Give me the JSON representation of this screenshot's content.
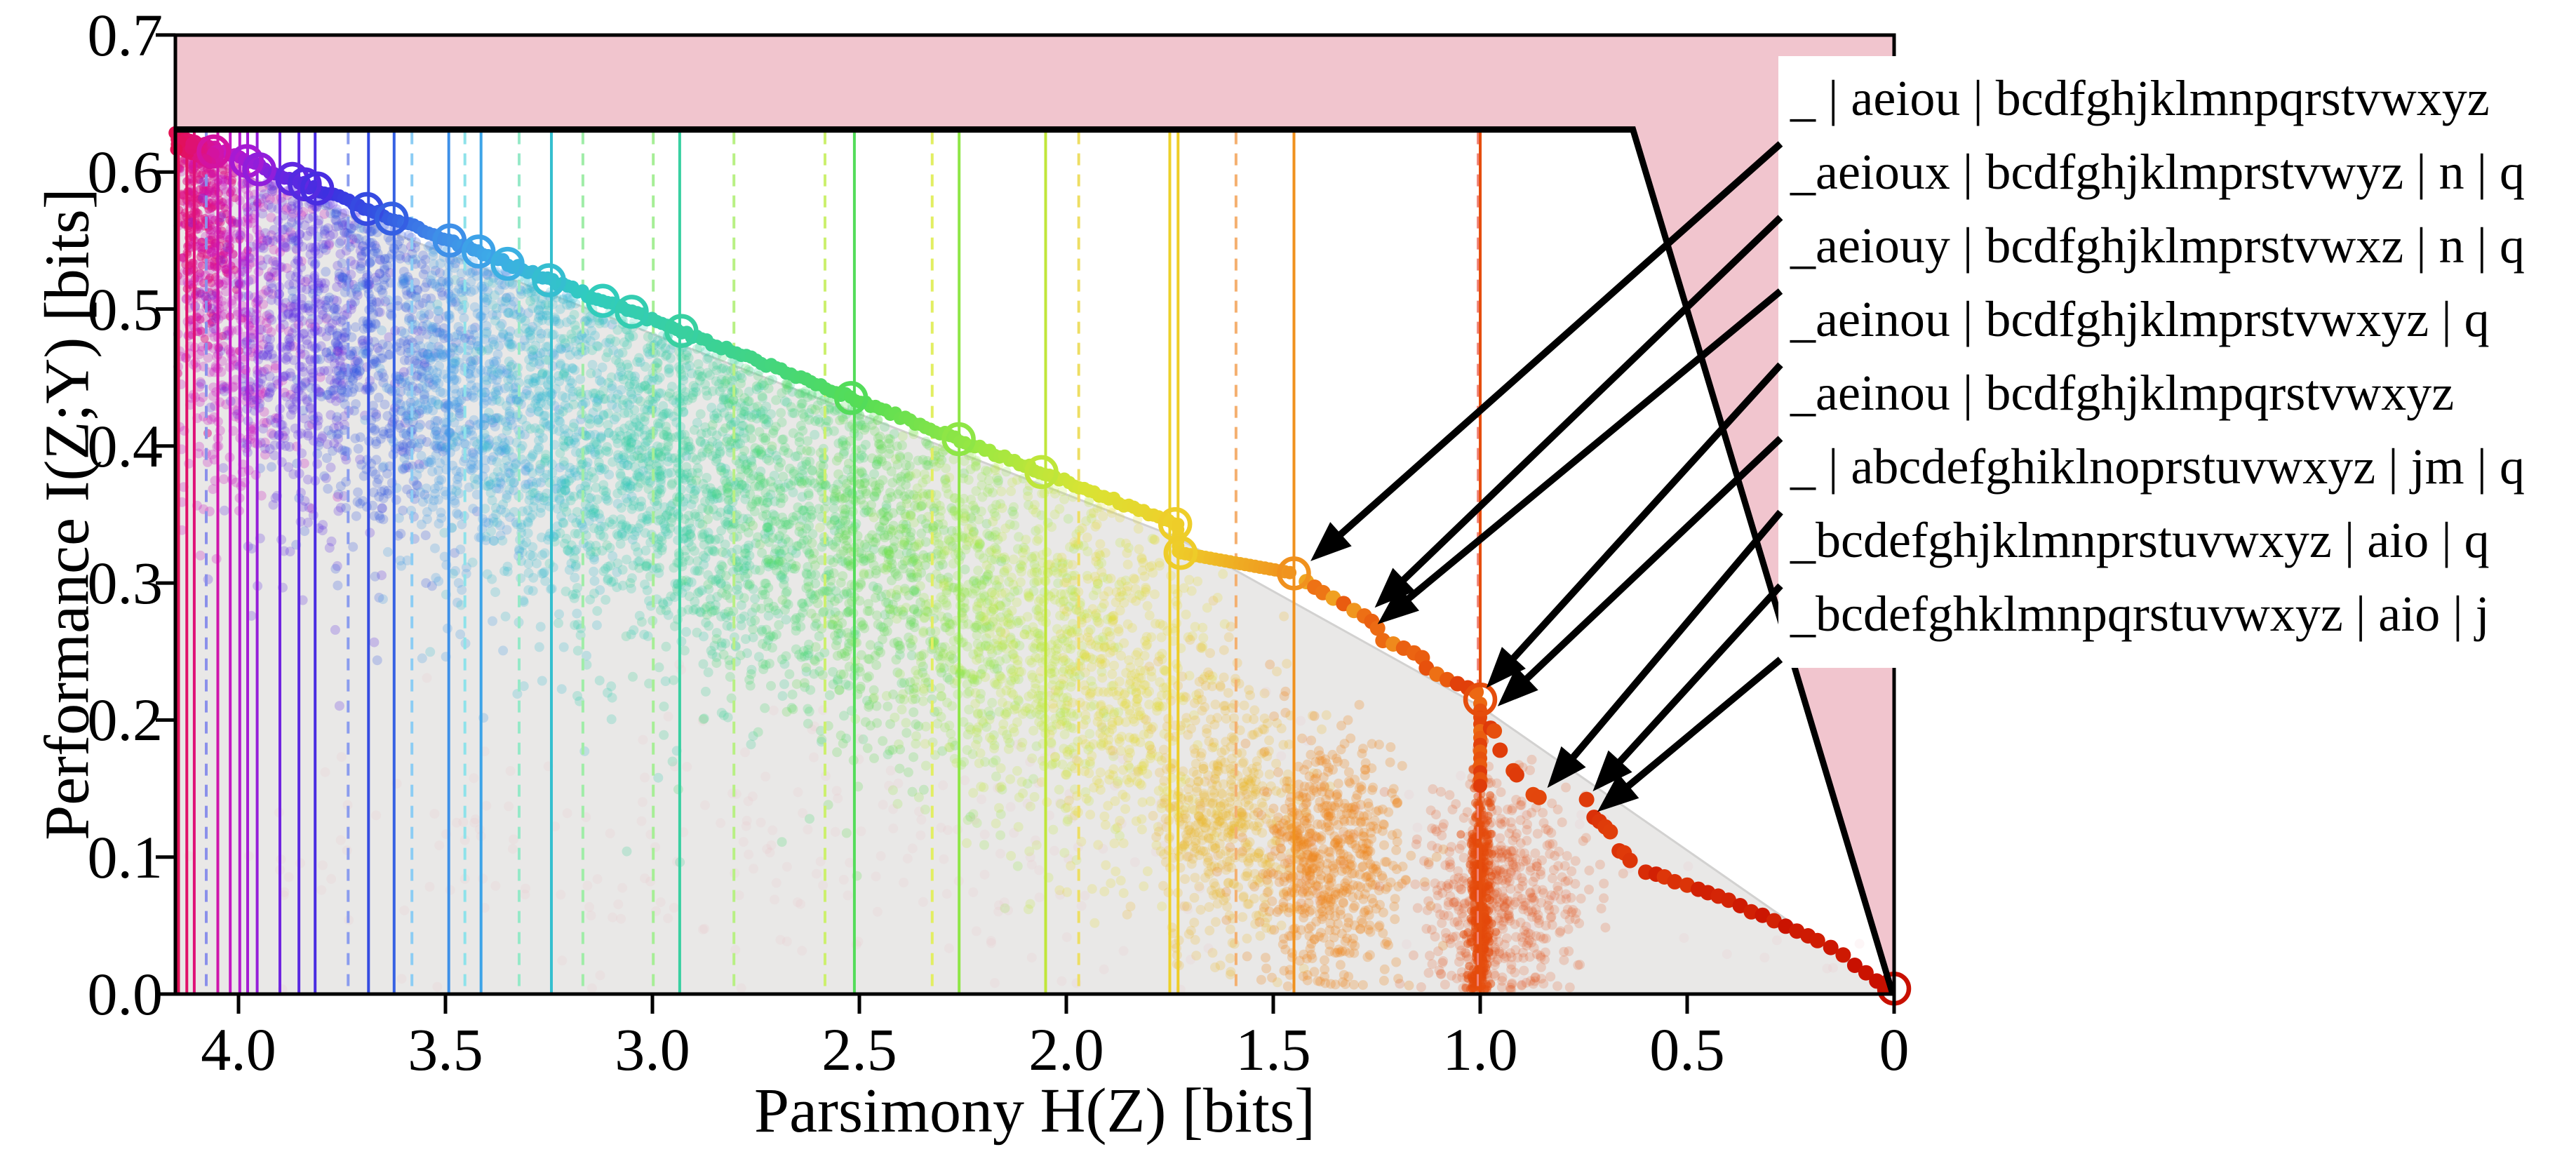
{
  "chart_data": {
    "type": "scatter",
    "title": "",
    "xlabel": "Parsimony H(Z) [bits]",
    "ylabel": "Performance I(Z;Y) [bits]",
    "xlim": [
      4.153,
      0
    ],
    "ylim": [
      0,
      0.7
    ],
    "x_axis_reversed": true,
    "grid": false,
    "x_ticks": [
      4.0,
      3.5,
      3.0,
      2.5,
      2.0,
      1.5,
      1.0,
      0.5,
      0
    ],
    "x_tick_labels": [
      "4.0",
      "3.5",
      "3.0",
      "2.5",
      "2.0",
      "1.5",
      "1.0",
      "0.5",
      "0"
    ],
    "y_ticks_top_down": [
      0.7,
      0.6,
      0.5,
      0.4,
      0.3,
      0.2,
      0.1,
      0.0
    ],
    "y_tick_labels_top_down": [
      "0.7",
      "0.6",
      "0.5",
      "0.4",
      "0.3",
      "0.2",
      "0.1",
      "0.0"
    ],
    "bounds": {
      "performance_cap_bits": 0.631,
      "identity_line": "I = H",
      "infeasible_color": "#f1c5ce",
      "hull_color": "#e9e8e7",
      "hull_edge_color": "#d2d1d0",
      "boundary_color": "#000000"
    },
    "colormap_stops": [
      [
        0.0,
        "#c81000"
      ],
      [
        0.12,
        "#d52706"
      ],
      [
        0.2,
        "#e03d0a"
      ],
      [
        0.26,
        "#e8550e"
      ],
      [
        0.31,
        "#ee7516"
      ],
      [
        0.35,
        "#f0921e"
      ],
      [
        0.42,
        "#eed02a"
      ],
      [
        0.47,
        "#d8e434"
      ],
      [
        0.53,
        "#9ce842"
      ],
      [
        0.6,
        "#55dd55"
      ],
      [
        0.68,
        "#3cd292"
      ],
      [
        0.76,
        "#30cbc0"
      ],
      [
        0.815,
        "#3dabe8"
      ],
      [
        0.85,
        "#3f86e8"
      ],
      [
        0.88,
        "#3355e2"
      ],
      [
        0.91,
        "#3c30e0"
      ],
      [
        0.935,
        "#6526e2"
      ],
      [
        0.955,
        "#9c1cd8"
      ],
      [
        0.97,
        "#c815c0"
      ],
      [
        0.985,
        "#dd1284"
      ],
      [
        1.0,
        "#e31052"
      ]
    ],
    "frontier": {
      "left_start_h": 4.153,
      "left_start_i": 0.628,
      "slope_per_bit": 0.118,
      "kink_h": 1.737,
      "kink_drop_i": 0.322,
      "shelf_end_h": 1.45,
      "shelf_end_i": 0.307,
      "stair_points": [
        [
          1.42,
          0.301
        ],
        [
          1.4,
          0.297
        ],
        [
          1.38,
          0.293
        ],
        [
          1.355,
          0.289
        ],
        [
          1.33,
          0.285
        ],
        [
          1.305,
          0.28
        ],
        [
          1.28,
          0.276
        ],
        [
          1.262,
          0.272
        ],
        [
          1.248,
          0.267
        ],
        [
          1.235,
          0.258
        ],
        [
          1.21,
          0.2555
        ],
        [
          1.185,
          0.2525
        ],
        [
          1.16,
          0.249
        ],
        [
          1.14,
          0.2455
        ],
        [
          1.13,
          0.238
        ],
        [
          1.105,
          0.2335
        ],
        [
          1.08,
          0.2295
        ],
        [
          1.055,
          0.2265
        ],
        [
          1.03,
          0.2235
        ],
        [
          1.01,
          0.2205
        ]
      ],
      "column_h": 1.0,
      "column_i_top": 0.212,
      "column_i_bottom": 0.15,
      "tail_points": [
        [
          0.975,
          0.194
        ],
        [
          0.966,
          0.192
        ],
        [
          0.952,
          0.178
        ],
        [
          0.92,
          0.163
        ],
        [
          0.912,
          0.16
        ],
        [
          0.872,
          0.1455
        ],
        [
          0.858,
          0.1435
        ],
        [
          0.743,
          0.142
        ],
        [
          0.725,
          0.129
        ],
        [
          0.712,
          0.126
        ],
        [
          0.698,
          0.122
        ],
        [
          0.686,
          0.1185
        ],
        [
          0.664,
          0.1045
        ],
        [
          0.652,
          0.103
        ],
        [
          0.638,
          0.0975
        ],
        [
          0.6,
          0.089
        ],
        [
          0.575,
          0.0875
        ],
        [
          0.555,
          0.0855
        ],
        [
          0.53,
          0.082
        ],
        [
          0.5,
          0.0795
        ],
        [
          0.473,
          0.0765
        ],
        [
          0.45,
          0.074
        ],
        [
          0.425,
          0.0715
        ],
        [
          0.4,
          0.0685
        ],
        [
          0.372,
          0.0645
        ],
        [
          0.345,
          0.06
        ],
        [
          0.318,
          0.0575
        ],
        [
          0.29,
          0.0535
        ],
        [
          0.262,
          0.0495
        ],
        [
          0.235,
          0.046
        ],
        [
          0.208,
          0.0425
        ],
        [
          0.185,
          0.039
        ],
        [
          0.153,
          0.034
        ],
        [
          0.123,
          0.0285
        ],
        [
          0.095,
          0.021
        ],
        [
          0.068,
          0.0155
        ],
        [
          0.042,
          0.0095
        ],
        [
          0.02,
          0.005
        ]
      ]
    },
    "frontier_rings": [
      [
        4.06,
        0.615
      ],
      [
        3.98,
        0.608
      ],
      [
        3.95,
        0.602
      ],
      [
        3.87,
        0.595
      ],
      [
        3.84,
        0.591
      ],
      [
        3.81,
        0.588
      ],
      [
        3.69,
        0.573
      ],
      [
        3.63,
        0.566
      ],
      [
        3.49,
        0.55
      ],
      [
        3.42,
        0.542
      ],
      [
        3.35,
        0.533
      ],
      [
        3.25,
        0.521
      ],
      [
        3.12,
        0.506
      ],
      [
        3.05,
        0.498
      ],
      [
        2.93,
        0.484
      ],
      [
        2.52,
        0.435
      ],
      [
        2.26,
        0.405
      ],
      [
        2.06,
        0.381
      ],
      [
        1.737,
        0.343
      ],
      [
        1.724,
        0.322
      ],
      [
        1.45,
        0.307
      ],
      [
        1.0,
        0.215
      ],
      [
        0.0,
        0.004
      ]
    ],
    "vlines": [
      {
        "h": 4.145,
        "dashed": 0
      },
      {
        "h": 4.125,
        "dashed": 0
      },
      {
        "h": 4.107,
        "dashed": 0
      },
      {
        "h": 4.078,
        "dashed": 1,
        "color": "#8a90ea"
      },
      {
        "h": 4.05,
        "dashed": 0
      },
      {
        "h": 4.02,
        "dashed": 0
      },
      {
        "h": 3.997,
        "dashed": 0
      },
      {
        "h": 3.978,
        "dashed": 0
      },
      {
        "h": 3.955,
        "dashed": 0
      },
      {
        "h": 3.9,
        "dashed": 0
      },
      {
        "h": 3.854,
        "dashed": 0
      },
      {
        "h": 3.815,
        "dashed": 0
      },
      {
        "h": 3.735,
        "dashed": 1,
        "color": "#8a9cee"
      },
      {
        "h": 3.686,
        "dashed": 0
      },
      {
        "h": 3.624,
        "dashed": 0
      },
      {
        "h": 3.581,
        "dashed": 1,
        "color": "#8ccdf4"
      },
      {
        "h": 3.492,
        "dashed": 0
      },
      {
        "h": 3.453,
        "dashed": 1,
        "color": "#8ee2ea"
      },
      {
        "h": 3.414,
        "dashed": 0
      },
      {
        "h": 3.322,
        "dashed": 1,
        "color": "#96e9c8"
      },
      {
        "h": 3.244,
        "dashed": 0
      },
      {
        "h": 3.168,
        "dashed": 1,
        "color": "#a0eda8"
      },
      {
        "h": 2.998,
        "dashed": 1,
        "color": "#a6ee96"
      },
      {
        "h": 2.934,
        "dashed": 0
      },
      {
        "h": 2.803,
        "dashed": 1,
        "color": "#b8f084"
      },
      {
        "h": 2.583,
        "dashed": 1,
        "color": "#ccf06e"
      },
      {
        "h": 2.512,
        "dashed": 0
      },
      {
        "h": 2.324,
        "dashed": 1,
        "color": "#e2ee62"
      },
      {
        "h": 2.259,
        "dashed": 0
      },
      {
        "h": 2.05,
        "dashed": 0
      },
      {
        "h": 1.97,
        "dashed": 1,
        "color": "#eede64"
      },
      {
        "h": 1.75,
        "dashed": 0
      },
      {
        "h": 1.73,
        "dashed": 0
      },
      {
        "h": 1.59,
        "dashed": 1,
        "color": "#f4b070"
      },
      {
        "h": 1.45,
        "dashed": 0
      },
      {
        "h": 1.005,
        "dashed": 1,
        "color": "#f08478"
      },
      {
        "h": 1.0,
        "dashed": 0
      }
    ],
    "clusters": [
      {
        "h": 4.09,
        "i": 0.568,
        "sh": 0.048,
        "si": 0.042,
        "n": 320,
        "a": 0.5,
        "r": 6
      },
      {
        "h": 4.03,
        "i": 0.5,
        "sh": 0.095,
        "si": 0.07,
        "n": 520,
        "a": 0.26,
        "r": 7
      },
      {
        "h": 3.85,
        "i": 0.488,
        "sh": 0.1,
        "si": 0.072,
        "n": 540,
        "a": 0.24,
        "r": 7
      },
      {
        "h": 3.65,
        "i": 0.463,
        "sh": 0.1,
        "si": 0.072,
        "n": 540,
        "a": 0.24,
        "r": 7
      },
      {
        "h": 3.45,
        "i": 0.438,
        "sh": 0.1,
        "si": 0.072,
        "n": 540,
        "a": 0.24,
        "r": 7
      },
      {
        "h": 3.25,
        "i": 0.413,
        "sh": 0.1,
        "si": 0.072,
        "n": 540,
        "a": 0.24,
        "r": 7
      },
      {
        "h": 3.05,
        "i": 0.388,
        "sh": 0.1,
        "si": 0.072,
        "n": 540,
        "a": 0.24,
        "r": 7
      },
      {
        "h": 2.85,
        "i": 0.363,
        "sh": 0.1,
        "si": 0.072,
        "n": 520,
        "a": 0.24,
        "r": 7
      },
      {
        "h": 2.65,
        "i": 0.338,
        "sh": 0.1,
        "si": 0.072,
        "n": 520,
        "a": 0.24,
        "r": 7
      },
      {
        "h": 2.45,
        "i": 0.313,
        "sh": 0.1,
        "si": 0.072,
        "n": 500,
        "a": 0.24,
        "r": 7
      },
      {
        "h": 2.25,
        "i": 0.285,
        "sh": 0.1,
        "si": 0.072,
        "n": 480,
        "a": 0.22,
        "r": 7
      },
      {
        "h": 2.05,
        "i": 0.255,
        "sh": 0.1,
        "si": 0.07,
        "n": 460,
        "a": 0.22,
        "r": 7
      },
      {
        "h": 1.85,
        "i": 0.22,
        "sh": 0.095,
        "si": 0.065,
        "n": 420,
        "a": 0.22,
        "r": 7
      },
      {
        "h": 1.62,
        "i": 0.135,
        "sh": 0.085,
        "si": 0.05,
        "n": 520,
        "a": 0.22,
        "r": 7
      },
      {
        "h": 1.36,
        "i": 0.095,
        "sh": 0.085,
        "si": 0.045,
        "n": 620,
        "a": 0.26,
        "r": 7
      },
      {
        "h": 1.0,
        "i": 0.07,
        "sh": 0.012,
        "si": 0.05,
        "n": 480,
        "a": 0.5,
        "r": 6
      },
      {
        "h": 0.95,
        "i": 0.072,
        "sh": 0.095,
        "si": 0.042,
        "n": 560,
        "a": 0.18,
        "r": 7
      },
      {
        "h": 2.5,
        "i": 0.1,
        "sh": 0.95,
        "si": 0.05,
        "n": 300,
        "a": 0.1,
        "r": 7,
        "color": "#eaa8ae"
      }
    ],
    "annotations": [
      {
        "label": "_ | aeiou | bcdfghjklmnpqrstvwxyz",
        "tip_h": 1.41,
        "tip_i": 0.316
      },
      {
        "label": "_aeioux | bcdfghjklmprstvwyz | n | q",
        "tip_h": 1.255,
        "tip_i": 0.282
      },
      {
        "label": "_aeiouy | bcdfghjklmprstvwxz | n | q",
        "tip_h": 1.248,
        "tip_i": 0.27
      },
      {
        "label": "_aeinou | bcdfghjklmprstvwxyz | q",
        "tip_h": 0.985,
        "tip_i": 0.2235
      },
      {
        "label": "_aeinou | bcdfghjklmpqrstvwxyz",
        "tip_h": 0.958,
        "tip_i": 0.21
      },
      {
        "label": "_ | abcdefghiklnoprstuvwxyz | jm | q",
        "tip_h": 0.838,
        "tip_i": 0.1505
      },
      {
        "label": "_bcdefghjklmnprstuvwxyz | aio | q",
        "tip_h": 0.728,
        "tip_i": 0.148
      },
      {
        "label": "_bcdefghklmnpqrstuvwxyz | aio | j",
        "tip_h": 0.717,
        "tip_i": 0.133
      }
    ]
  }
}
